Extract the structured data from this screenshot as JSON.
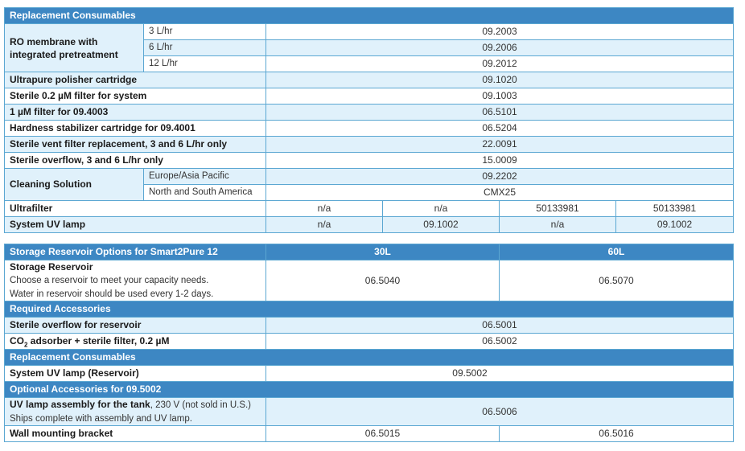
{
  "table1": {
    "header": "Replacement Consumables",
    "ro": {
      "label_line1": "RO membrane with",
      "label_line2": "integrated pretreatment",
      "rows": [
        {
          "sub": "3 L/hr",
          "value": "09.2003"
        },
        {
          "sub": "6 L/hr",
          "value": "09.2006"
        },
        {
          "sub": "12 L/hr",
          "value": "09.2012"
        }
      ]
    },
    "rows": [
      {
        "label": "Ultrapure polisher cartridge",
        "value": "09.1020"
      },
      {
        "label": "Sterile 0.2 µM filter for system",
        "value": "09.1003"
      },
      {
        "label": "1 µM filter for 09.4003",
        "value": "06.5101"
      },
      {
        "label": "Hardness stabilizer cartridge for  09.4001",
        "value": "06.5204"
      },
      {
        "label": "Sterile vent filter replacement, 3 and 6 L/hr only",
        "value": "22.0091"
      },
      {
        "label": "Sterile overflow, 3 and 6 L/hr only",
        "value": "15.0009"
      }
    ],
    "cleaning": {
      "label": "Cleaning Solution",
      "rows": [
        {
          "sub": "Europe/Asia Pacific",
          "value": "09.2202"
        },
        {
          "sub": "North and South America",
          "value": "CMX25"
        }
      ]
    },
    "ultrafilter": {
      "label": "Ultrafilter",
      "values": [
        "n/a",
        "n/a",
        "50133981",
        "50133981"
      ]
    },
    "uv_lamp": {
      "label": "System UV lamp",
      "values": [
        "n/a",
        "09.1002",
        "n/a",
        "09.1002"
      ]
    }
  },
  "table2": {
    "header": "Storage Reservoir Options for Smart2Pure 12",
    "col_30": "30L",
    "col_60": "60L",
    "storage": {
      "label": "Storage Reservoir",
      "desc1": "Choose a reservoir to meet your capacity needs.",
      "desc2": "Water in reservoir should be used every 1-2 days.",
      "value_30": "06.5040",
      "value_60": "06.5070"
    },
    "required_header": "Required Accessories",
    "sterile_overflow": {
      "label": "Sterile overflow for reservoir",
      "value": "06.5001"
    },
    "co2": {
      "label_a": "CO",
      "label_sub": "2",
      "label_b": " adsorber + sterile filter, 0.2 µM",
      "value": "06.5002"
    },
    "consumables_header": "Replacement Consumables",
    "uv_reservoir": {
      "label": "System UV lamp (Reservoir)",
      "value": "09.5002"
    },
    "optional_header": "Optional Accessories for 09.5002",
    "uv_assembly": {
      "label_bold": "UV lamp assembly for the tank",
      "label_rest": ", 230 V (not sold in U.S.)",
      "line2": "Ships complete with assembly and UV lamp.",
      "value": "06.5006"
    },
    "bracket": {
      "label": "Wall mounting bracket",
      "value_30": "06.5015",
      "value_60": "06.5016"
    }
  }
}
